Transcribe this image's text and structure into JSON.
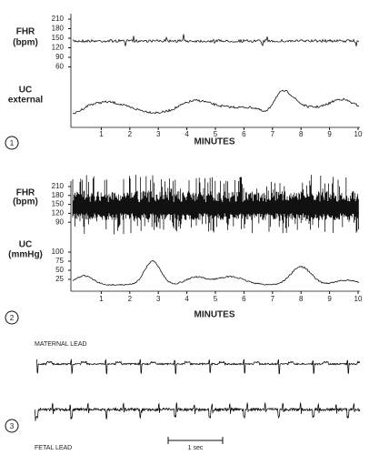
{
  "panels": [
    {
      "label": "1",
      "fhr_label": [
        "FHR",
        "(bpm)"
      ],
      "fhr_ticks": [
        210,
        180,
        150,
        120,
        90,
        60
      ],
      "uc_label": [
        "UC",
        "external"
      ],
      "uc_ticks": [],
      "minutes": [
        1,
        2,
        3,
        4,
        5,
        6,
        7,
        8,
        9,
        10
      ],
      "x_title": "MINUTES"
    },
    {
      "label": "2",
      "fhr_label": [
        "FHR",
        "(bpm)"
      ],
      "fhr_ticks": [
        210,
        180,
        150,
        120,
        90
      ],
      "uc_label": [
        "UC",
        "(mmHg)"
      ],
      "uc_ticks": [
        100,
        75,
        50,
        25
      ],
      "minutes": [
        1,
        2,
        3,
        4,
        5,
        6,
        7,
        8,
        9,
        10
      ],
      "x_title": "MINUTES"
    }
  ],
  "ecg": {
    "label": "3",
    "maternal": "MATERNAL LEAD",
    "fetal": "FETAL LEAD",
    "scale": "1 sec"
  }
}
